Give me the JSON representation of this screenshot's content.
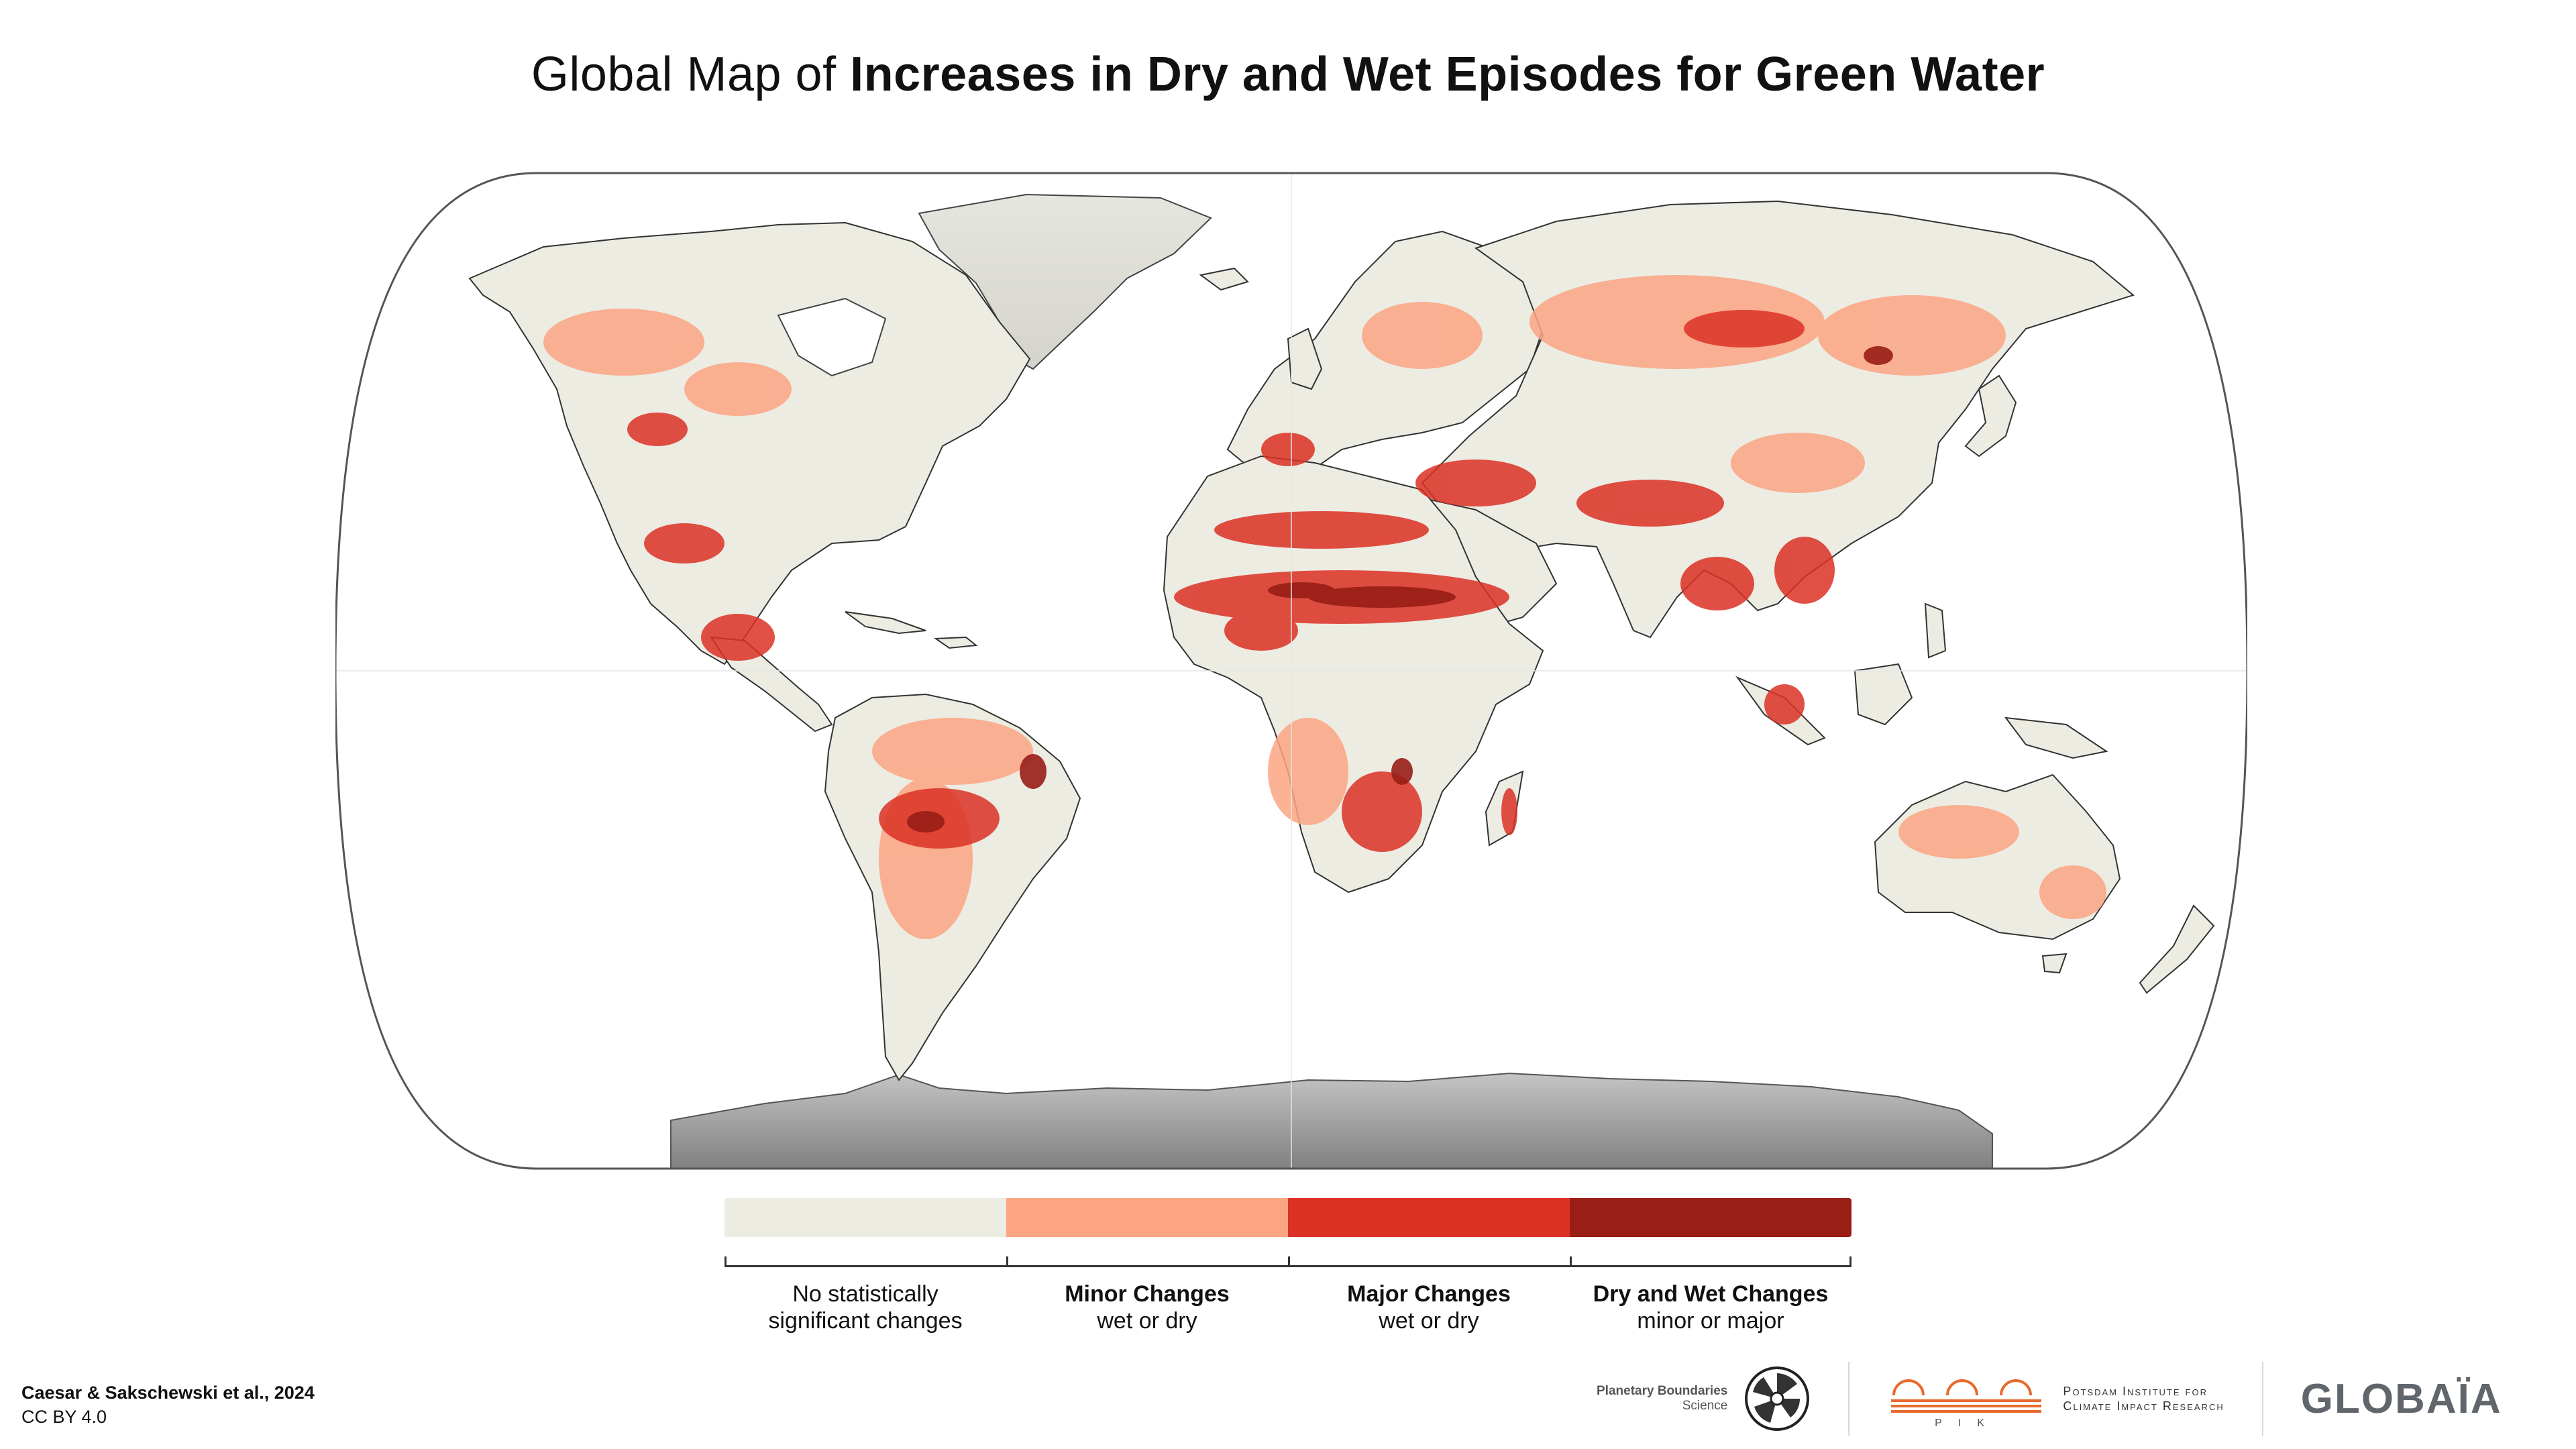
{
  "title": {
    "regular": "Global Map of ",
    "bold": "Increases in Dry and Wet Episodes for Green Water"
  },
  "legend": {
    "items": [
      {
        "line1": "No statistically",
        "line2": "significant changes",
        "color": "#ecece3",
        "line1_bold": false
      },
      {
        "line1": "Minor Changes",
        "line2": "wet or dry",
        "color": "#fca582",
        "line1_bold": true
      },
      {
        "line1": "Major Changes",
        "line2": "wet or dry",
        "color": "#dc3124",
        "line1_bold": true
      },
      {
        "line1": "Dry and Wet Changes",
        "line2": "minor or major",
        "color": "#981e16",
        "line1_bold": true
      }
    ]
  },
  "credit": {
    "line1": "Caesar & Sakschewski et al., 2024",
    "line2": "CC BY 4.0"
  },
  "logos": {
    "pbs": {
      "line1": "Planetary Boundaries",
      "line2": "Science"
    },
    "pik": {
      "line1": "Potsdam Institute for",
      "line2": "Climate Impact Research",
      "mark": "PIK"
    },
    "globaia": "GLOBAÏA"
  },
  "colors": {
    "land": "#ecece3",
    "minor": "#fca582",
    "major": "#dc3124",
    "both": "#981e16",
    "ice": "#9a9a9a",
    "outline": "#555555"
  }
}
